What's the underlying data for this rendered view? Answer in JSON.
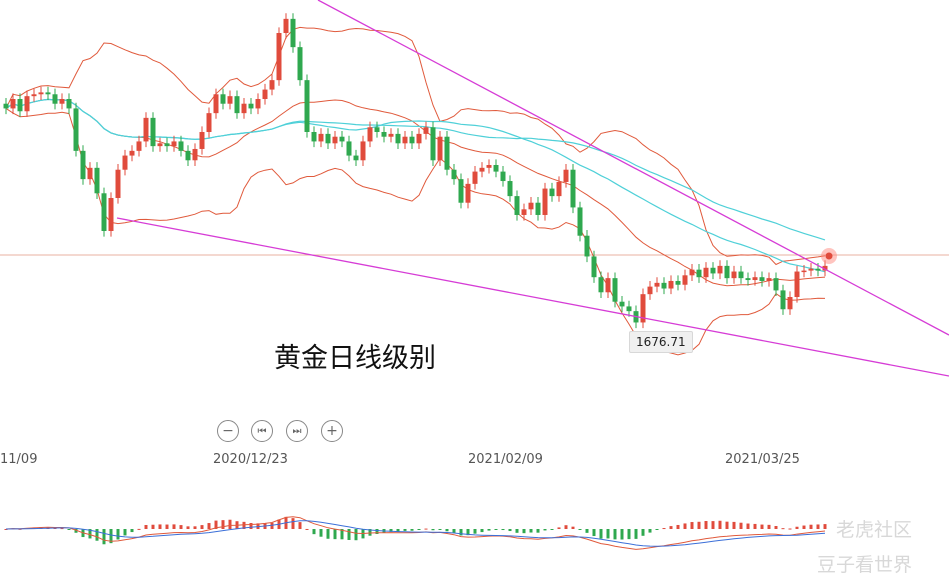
{
  "chart_data": {
    "type": "candlestick",
    "title": "黄金日线级别",
    "x_tick_labels": [
      "11/09",
      "2020/12/23",
      "2021/02/09",
      "2021/03/25"
    ],
    "annotations": {
      "low_label": "1676.71"
    },
    "price_range_note": "",
    "candles": [
      [
        0,
        1910,
        1905
      ],
      [
        1,
        1905,
        1915
      ],
      [
        2,
        1915,
        1902
      ],
      [
        3,
        1902,
        1918
      ],
      [
        4,
        1918,
        1920
      ],
      [
        5,
        1920,
        1922
      ],
      [
        6,
        1922,
        1920
      ],
      [
        7,
        1920,
        1910
      ],
      [
        8,
        1910,
        1915
      ],
      [
        9,
        1915,
        1905
      ],
      [
        10,
        1905,
        1860
      ],
      [
        11,
        1860,
        1830
      ],
      [
        12,
        1830,
        1842
      ],
      [
        13,
        1842,
        1815
      ],
      [
        14,
        1815,
        1775
      ],
      [
        15,
        1775,
        1810
      ],
      [
        16,
        1810,
        1840
      ],
      [
        17,
        1840,
        1855
      ],
      [
        18,
        1855,
        1860
      ],
      [
        19,
        1860,
        1870
      ],
      [
        20,
        1870,
        1895
      ],
      [
        21,
        1895,
        1865
      ],
      [
        22,
        1865,
        1868
      ],
      [
        23,
        1868,
        1865
      ],
      [
        24,
        1865,
        1870
      ],
      [
        25,
        1870,
        1860
      ],
      [
        26,
        1860,
        1850
      ],
      [
        27,
        1850,
        1862
      ],
      [
        28,
        1862,
        1880
      ],
      [
        29,
        1880,
        1900
      ],
      [
        30,
        1900,
        1920
      ],
      [
        31,
        1920,
        1910
      ],
      [
        32,
        1910,
        1918
      ],
      [
        33,
        1918,
        1900
      ],
      [
        34,
        1900,
        1910
      ],
      [
        35,
        1910,
        1905
      ],
      [
        36,
        1905,
        1915
      ],
      [
        37,
        1915,
        1925
      ],
      [
        38,
        1925,
        1935
      ],
      [
        39,
        1935,
        1985
      ],
      [
        40,
        1985,
        2000
      ],
      [
        41,
        2000,
        1970
      ],
      [
        42,
        1970,
        1935
      ],
      [
        43,
        1935,
        1880
      ],
      [
        44,
        1880,
        1870
      ],
      [
        45,
        1870,
        1878
      ],
      [
        46,
        1878,
        1868
      ],
      [
        47,
        1868,
        1875
      ],
      [
        48,
        1875,
        1870
      ],
      [
        49,
        1870,
        1855
      ],
      [
        50,
        1855,
        1850
      ],
      [
        51,
        1850,
        1870
      ],
      [
        52,
        1870,
        1885
      ],
      [
        53,
        1885,
        1880
      ],
      [
        54,
        1880,
        1875
      ],
      [
        55,
        1875,
        1878
      ],
      [
        56,
        1878,
        1868
      ],
      [
        57,
        1868,
        1875
      ],
      [
        58,
        1875,
        1868
      ],
      [
        59,
        1868,
        1878
      ],
      [
        60,
        1878,
        1885
      ],
      [
        61,
        1885,
        1850
      ],
      [
        62,
        1850,
        1875
      ],
      [
        63,
        1875,
        1840
      ],
      [
        64,
        1840,
        1830
      ],
      [
        65,
        1830,
        1805
      ],
      [
        66,
        1805,
        1825
      ],
      [
        67,
        1825,
        1838
      ],
      [
        68,
        1838,
        1842
      ],
      [
        69,
        1842,
        1845
      ],
      [
        70,
        1845,
        1838
      ],
      [
        71,
        1838,
        1828
      ],
      [
        72,
        1828,
        1812
      ],
      [
        73,
        1812,
        1792
      ],
      [
        74,
        1792,
        1798
      ],
      [
        75,
        1798,
        1805
      ],
      [
        76,
        1805,
        1792
      ],
      [
        77,
        1792,
        1820
      ],
      [
        78,
        1820,
        1812
      ],
      [
        79,
        1812,
        1827
      ],
      [
        80,
        1827,
        1840
      ],
      [
        81,
        1840,
        1800
      ],
      [
        82,
        1800,
        1770
      ],
      [
        83,
        1770,
        1748
      ],
      [
        84,
        1748,
        1726
      ],
      [
        85,
        1726,
        1710
      ],
      [
        86,
        1710,
        1725
      ],
      [
        87,
        1725,
        1700
      ],
      [
        88,
        1700,
        1695
      ],
      [
        89,
        1695,
        1690
      ],
      [
        90,
        1690,
        1678
      ],
      [
        91,
        1678,
        1708
      ],
      [
        92,
        1708,
        1716
      ],
      [
        93,
        1716,
        1720
      ],
      [
        94,
        1720,
        1714
      ],
      [
        95,
        1714,
        1722
      ],
      [
        96,
        1722,
        1718
      ],
      [
        97,
        1718,
        1728
      ],
      [
        98,
        1728,
        1734
      ],
      [
        99,
        1734,
        1726
      ],
      [
        100,
        1726,
        1736
      ],
      [
        101,
        1736,
        1730
      ],
      [
        102,
        1730,
        1738
      ],
      [
        103,
        1738,
        1725
      ],
      [
        104,
        1725,
        1732
      ],
      [
        105,
        1732,
        1725
      ],
      [
        106,
        1725,
        1723
      ],
      [
        107,
        1723,
        1726
      ],
      [
        108,
        1726,
        1722
      ],
      [
        109,
        1722,
        1725
      ],
      [
        110,
        1725,
        1712
      ],
      [
        111,
        1712,
        1692
      ],
      [
        112,
        1692,
        1705
      ],
      [
        113,
        1705,
        1732
      ],
      [
        114,
        1732,
        1733
      ],
      [
        115,
        1733,
        1735
      ],
      [
        116,
        1735,
        1733
      ],
      [
        117,
        1733,
        1738
      ]
    ],
    "series": [
      {
        "type": "line",
        "color": "#e05a3c"
      },
      {
        "type": "line",
        "color": "#4fd0d8"
      },
      {
        "type": "line",
        "color": "#d63cd6"
      }
    ],
    "colors": {
      "up": "#e04b3c",
      "down": "#2fa84f",
      "boll": "#e05a3c",
      "ma": "#4fd0d8",
      "trend": "#d63cd6",
      "hline": "#e8b0a0"
    }
  },
  "zoom_controls": [
    "−",
    "⏮",
    "⏭",
    "+"
  ],
  "watermark": {
    "line1": "老虎社区",
    "line2": "豆子看世界"
  }
}
